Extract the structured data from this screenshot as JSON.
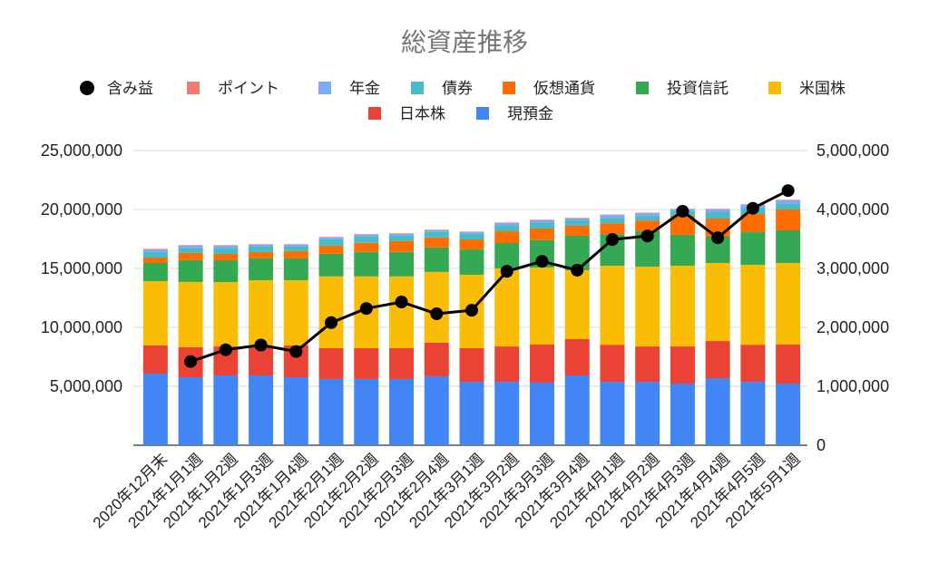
{
  "chart_data": {
    "type": "bar",
    "stacked": true,
    "title": "総資産推移",
    "categories": [
      "2020年12月末",
      "2021年1月1週",
      "2021年1月2週",
      "2021年1月3週",
      "2021年1月4週",
      "2021年2月1週",
      "2021年2月2週",
      "2021年2月3週",
      "2021年2月4週",
      "2021年3月1週",
      "2021年3月2週",
      "2021年3月3週",
      "2021年3月4週",
      "2021年4月1週",
      "2021年4月2週",
      "2021年4月3週",
      "2021年4月4週",
      "2021年4月5週",
      "2021年5月1週"
    ],
    "series": [
      {
        "name": "現預金",
        "color": "#4285f4",
        "values": [
          6080000,
          5770000,
          5920000,
          5920000,
          5770000,
          5620000,
          5620000,
          5620000,
          5850000,
          5380000,
          5380000,
          5310000,
          5920000,
          5380000,
          5380000,
          5230000,
          5690000,
          5380000,
          5230000
        ]
      },
      {
        "name": "日本株",
        "color": "#ea4335",
        "values": [
          2380000,
          2540000,
          2460000,
          2540000,
          2690000,
          2620000,
          2620000,
          2620000,
          2850000,
          2850000,
          3000000,
          3230000,
          3080000,
          3150000,
          3000000,
          3150000,
          3150000,
          3150000,
          3310000
        ]
      },
      {
        "name": "米国株",
        "color": "#fbbc04",
        "values": [
          5460000,
          5540000,
          5460000,
          5540000,
          5540000,
          6080000,
          6080000,
          6080000,
          6000000,
          6230000,
          6620000,
          6540000,
          5850000,
          6690000,
          6770000,
          6850000,
          6620000,
          6770000,
          6920000
        ]
      },
      {
        "name": "投資信託",
        "color": "#34a853",
        "values": [
          1540000,
          1850000,
          1850000,
          1850000,
          1850000,
          1920000,
          2080000,
          2080000,
          2080000,
          2150000,
          2150000,
          2310000,
          2920000,
          2690000,
          3000000,
          2620000,
          2230000,
          2770000,
          2770000
        ]
      },
      {
        "name": "仮想通貨",
        "color": "#ff6d01",
        "values": [
          460000,
          620000,
          540000,
          540000,
          620000,
          690000,
          770000,
          920000,
          850000,
          850000,
          1000000,
          1000000,
          850000,
          920000,
          920000,
          1620000,
          1540000,
          1540000,
          1770000
        ]
      },
      {
        "name": "債券",
        "color": "#46bdc6",
        "values": [
          460000,
          380000,
          460000,
          460000,
          380000,
          540000,
          540000,
          460000,
          460000,
          460000,
          460000,
          460000,
          460000,
          460000,
          380000,
          380000,
          540000,
          540000,
          460000
        ]
      },
      {
        "name": "年金",
        "color": "#7baaf7",
        "values": [
          230000,
          230000,
          230000,
          150000,
          150000,
          150000,
          150000,
          150000,
          150000,
          150000,
          230000,
          230000,
          150000,
          230000,
          230000,
          150000,
          230000,
          230000,
          310000
        ]
      },
      {
        "name": "ポイント",
        "color": "#f07b72",
        "values": [
          50000,
          50000,
          50000,
          50000,
          50000,
          50000,
          50000,
          50000,
          50000,
          50000,
          50000,
          50000,
          50000,
          50000,
          50000,
          50000,
          50000,
          50000,
          50000
        ]
      }
    ],
    "line_series": {
      "name": "含み益",
      "color": "#000000",
      "axis": "right",
      "values": [
        null,
        1420000,
        1620000,
        1700000,
        1590000,
        2080000,
        2320000,
        2430000,
        2230000,
        2290000,
        2950000,
        3120000,
        2970000,
        3490000,
        3550000,
        3970000,
        3520000,
        4020000,
        4320000
      ]
    },
    "y_left": {
      "range": [
        0,
        25000000
      ],
      "tick_labels": [
        "5,000,000",
        "10,000,000",
        "15,000,000",
        "20,000,000",
        "25,000,000"
      ]
    },
    "y_right": {
      "range": [
        0,
        5000000
      ],
      "tick_labels": [
        "0",
        "1,000,000",
        "2,000,000",
        "3,000,000",
        "4,000,000",
        "5,000,000"
      ]
    },
    "grid": true,
    "legend": "top"
  }
}
